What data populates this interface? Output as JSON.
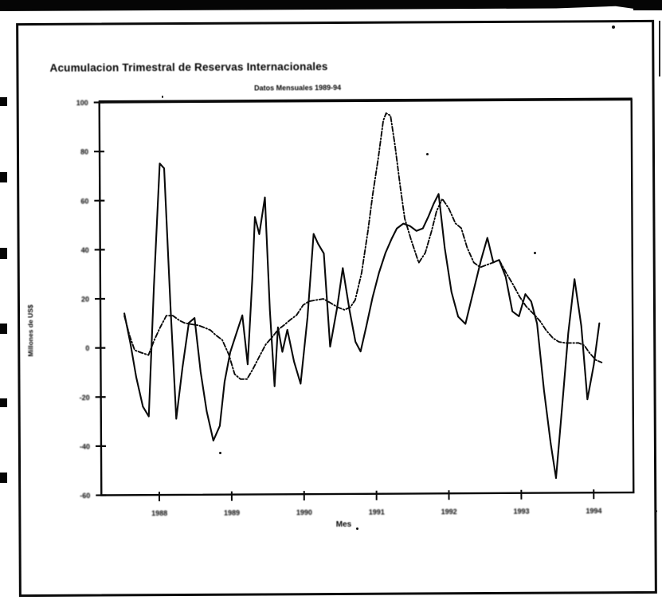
{
  "page": {
    "kind": "scanned chart page",
    "background": "#ffffff",
    "ink_color": "#0a0a0a"
  },
  "chart": {
    "title": "Acumulacion Trimestral de Reservas Internacionales",
    "subtitle": "Datos Mensuales 1989-94",
    "xlabel": "Mes",
    "ylabel": "Millones de US$"
  },
  "chart_data": {
    "type": "line",
    "title": "Acumulacion Trimestral de Reservas Internacionales",
    "subtitle": "Datos Mensuales 1989-94",
    "xlabel": "Mes",
    "ylabel": "Millones de US$",
    "xlim": [
      1987.2,
      1994.55
    ],
    "ylim": [
      -60,
      100
    ],
    "xticks": [
      1988,
      1989,
      1990,
      1991,
      1992,
      1993,
      1994
    ],
    "yticks": [
      100,
      80,
      60,
      40,
      20,
      0,
      -20,
      -40,
      -60
    ],
    "grid": false,
    "legend": "none",
    "frame": "full-box",
    "series": [
      {
        "name": "serie-mensual-solida",
        "style": "solid",
        "color": "#0a0a0a",
        "points": [
          [
            1987.53,
            14
          ],
          [
            1987.61,
            2
          ],
          [
            1987.69,
            -12
          ],
          [
            1987.78,
            -24
          ],
          [
            1987.86,
            -28
          ],
          [
            1987.94,
            25
          ],
          [
            1988.03,
            75
          ],
          [
            1988.09,
            73
          ],
          [
            1988.17,
            15
          ],
          [
            1988.24,
            -29
          ],
          [
            1988.33,
            -8
          ],
          [
            1988.42,
            10
          ],
          [
            1988.5,
            12
          ],
          [
            1988.58,
            -10
          ],
          [
            1988.66,
            -26
          ],
          [
            1988.75,
            -38
          ],
          [
            1988.84,
            -32
          ],
          [
            1988.91,
            -14
          ],
          [
            1988.99,
            -2
          ],
          [
            1989.08,
            6
          ],
          [
            1989.16,
            13
          ],
          [
            1989.23,
            -7
          ],
          [
            1989.3,
            28
          ],
          [
            1989.34,
            53
          ],
          [
            1989.4,
            46
          ],
          [
            1989.48,
            61
          ],
          [
            1989.54,
            15
          ],
          [
            1989.6,
            -16
          ],
          [
            1989.65,
            8
          ],
          [
            1989.71,
            -2
          ],
          [
            1989.78,
            7
          ],
          [
            1989.87,
            -6
          ],
          [
            1989.96,
            -15
          ],
          [
            1990.06,
            12
          ],
          [
            1990.15,
            46
          ],
          [
            1990.21,
            42
          ],
          [
            1990.29,
            38
          ],
          [
            1990.37,
            0
          ],
          [
            1990.47,
            16
          ],
          [
            1990.55,
            32
          ],
          [
            1990.64,
            15
          ],
          [
            1990.72,
            2
          ],
          [
            1990.79,
            -2
          ],
          [
            1990.87,
            8
          ],
          [
            1990.96,
            20
          ],
          [
            1991.05,
            30
          ],
          [
            1991.14,
            38
          ],
          [
            1991.23,
            44
          ],
          [
            1991.3,
            48
          ],
          [
            1991.39,
            50
          ],
          [
            1991.48,
            49
          ],
          [
            1991.57,
            47
          ],
          [
            1991.66,
            48
          ],
          [
            1991.74,
            53
          ],
          [
            1991.81,
            58
          ],
          [
            1991.88,
            62
          ],
          [
            1991.96,
            40
          ],
          [
            1992.05,
            22
          ],
          [
            1992.14,
            12
          ],
          [
            1992.24,
            9
          ],
          [
            1992.35,
            22
          ],
          [
            1992.46,
            35
          ],
          [
            1992.55,
            44
          ],
          [
            1992.63,
            34
          ],
          [
            1992.71,
            35
          ],
          [
            1992.8,
            28
          ],
          [
            1992.89,
            14
          ],
          [
            1992.98,
            12
          ],
          [
            1993.07,
            21
          ],
          [
            1993.15,
            18
          ],
          [
            1993.23,
            9
          ],
          [
            1993.32,
            -18
          ],
          [
            1993.41,
            -40
          ],
          [
            1993.48,
            -54
          ],
          [
            1993.57,
            -25
          ],
          [
            1993.66,
            5
          ],
          [
            1993.75,
            27
          ],
          [
            1993.84,
            8
          ],
          [
            1993.92,
            -22
          ],
          [
            1994.01,
            -8
          ],
          [
            1994.09,
            9
          ]
        ]
      },
      {
        "name": "serie-acumulada-punto-raya",
        "style": "dashdot",
        "color": "#0a0a0a",
        "points": [
          [
            1987.53,
            13
          ],
          [
            1987.6,
            5
          ],
          [
            1987.67,
            -1
          ],
          [
            1987.76,
            -2
          ],
          [
            1987.86,
            -3
          ],
          [
            1987.94,
            3
          ],
          [
            1988.02,
            8
          ],
          [
            1988.11,
            13
          ],
          [
            1988.2,
            13
          ],
          [
            1988.29,
            11
          ],
          [
            1988.36,
            10
          ],
          [
            1988.45,
            9.5
          ],
          [
            1988.55,
            9
          ],
          [
            1988.64,
            8
          ],
          [
            1988.72,
            7
          ],
          [
            1988.79,
            5
          ],
          [
            1988.88,
            3
          ],
          [
            1988.97,
            -3
          ],
          [
            1989.05,
            -11
          ],
          [
            1989.13,
            -13
          ],
          [
            1989.22,
            -13
          ],
          [
            1989.3,
            -9
          ],
          [
            1989.39,
            -4
          ],
          [
            1989.48,
            1
          ],
          [
            1989.57,
            4
          ],
          [
            1989.65,
            7
          ],
          [
            1989.74,
            9
          ],
          [
            1989.82,
            11
          ],
          [
            1989.91,
            13
          ],
          [
            1990.0,
            17
          ],
          [
            1990.08,
            18.5
          ],
          [
            1990.17,
            19
          ],
          [
            1990.28,
            19.5
          ],
          [
            1990.37,
            18
          ],
          [
            1990.48,
            16
          ],
          [
            1990.57,
            15
          ],
          [
            1990.65,
            16
          ],
          [
            1990.72,
            19
          ],
          [
            1990.81,
            30
          ],
          [
            1990.9,
            47
          ],
          [
            1990.97,
            62
          ],
          [
            1991.05,
            77
          ],
          [
            1991.12,
            92
          ],
          [
            1991.16,
            95
          ],
          [
            1991.22,
            94
          ],
          [
            1991.28,
            82
          ],
          [
            1991.35,
            65
          ],
          [
            1991.41,
            52
          ],
          [
            1991.5,
            43
          ],
          [
            1991.6,
            34
          ],
          [
            1991.69,
            38
          ],
          [
            1991.78,
            47
          ],
          [
            1991.85,
            55
          ],
          [
            1991.93,
            60
          ],
          [
            1992.02,
            56
          ],
          [
            1992.11,
            50
          ],
          [
            1992.19,
            48
          ],
          [
            1992.27,
            40
          ],
          [
            1992.36,
            34
          ],
          [
            1992.45,
            32
          ],
          [
            1992.54,
            33
          ],
          [
            1992.63,
            34
          ],
          [
            1992.71,
            35
          ],
          [
            1992.8,
            30
          ],
          [
            1992.9,
            25
          ],
          [
            1992.99,
            20
          ],
          [
            1993.08,
            16
          ],
          [
            1993.18,
            13
          ],
          [
            1993.27,
            10
          ],
          [
            1993.36,
            6
          ],
          [
            1993.45,
            3
          ],
          [
            1993.53,
            1.5
          ],
          [
            1993.62,
            1
          ],
          [
            1993.71,
            1
          ],
          [
            1993.8,
            1
          ],
          [
            1993.88,
            0
          ],
          [
            1993.95,
            -3
          ],
          [
            1994.04,
            -6
          ],
          [
            1994.12,
            -7
          ]
        ]
      }
    ]
  }
}
